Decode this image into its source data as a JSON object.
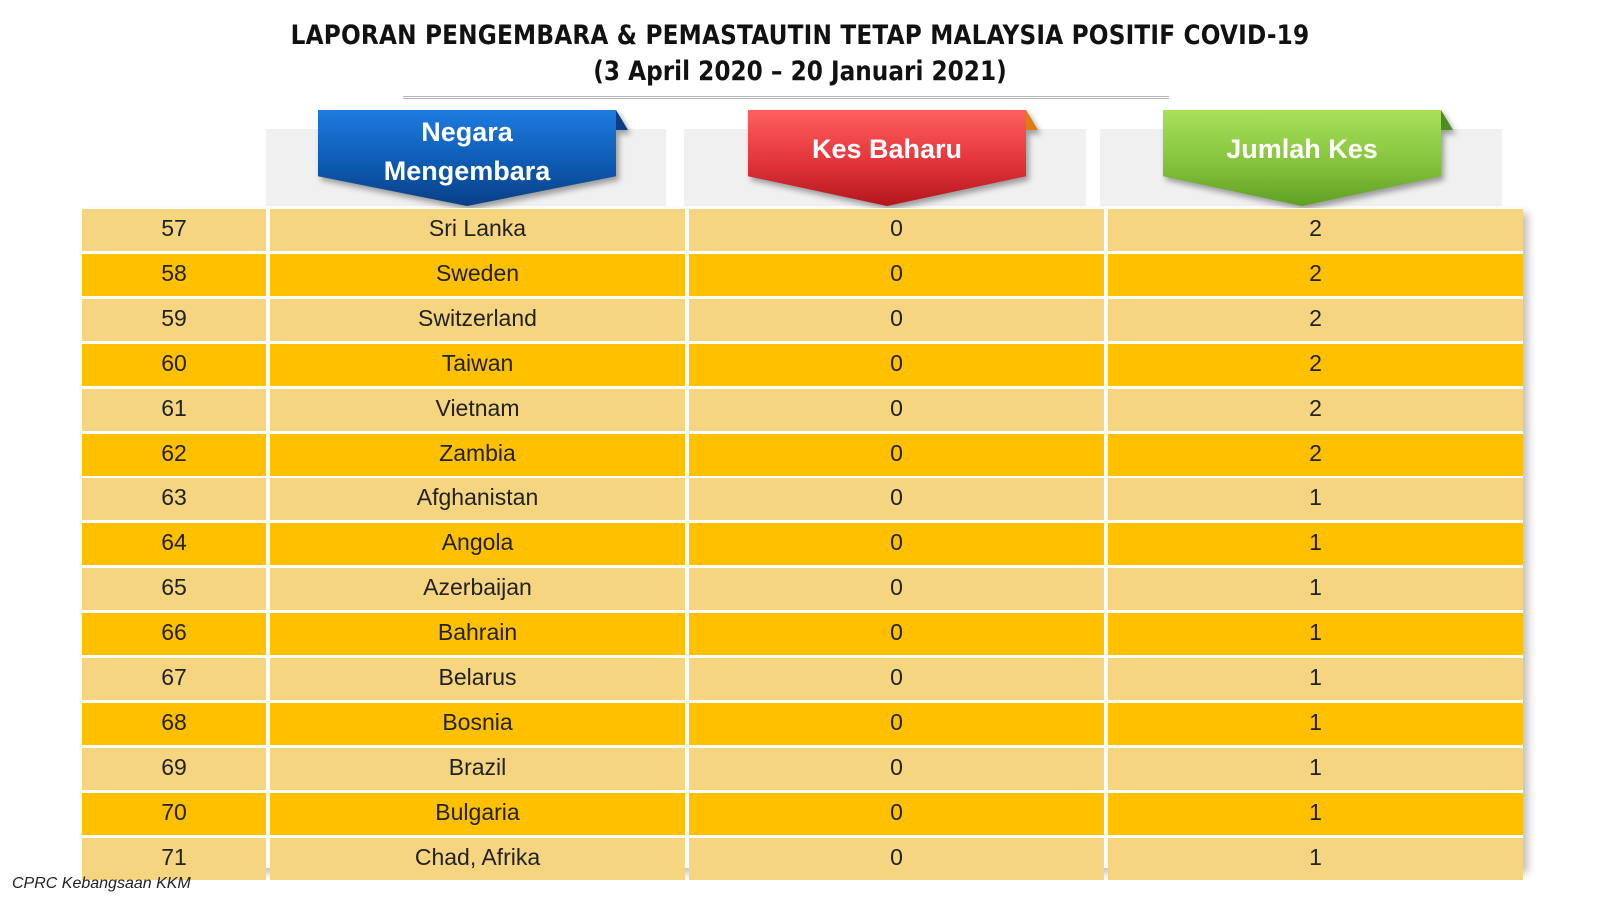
{
  "title": {
    "line1": "LAPORAN PENGEMBARA & PEMASTAUTIN TETAP MALAYSIA POSITIF COVID-19",
    "line2": "(3 April 2020 –  20 Januari 2021)"
  },
  "headers": {
    "country_line1": "Negara",
    "country_line2": "Mengembara",
    "new_cases": "Kes Baharu",
    "total_cases": "Jumlah Kes"
  },
  "colors": {
    "row_light": "#f5d580",
    "row_dark": "#ffc000",
    "header_blue": "#0d5bb3",
    "header_red": "#e2343a",
    "header_green": "#86c33d"
  },
  "rows": [
    {
      "no": "57",
      "country": "Sri Lanka",
      "new": "0",
      "total": "2"
    },
    {
      "no": "58",
      "country": "Sweden",
      "new": "0",
      "total": "2"
    },
    {
      "no": "59",
      "country": "Switzerland",
      "new": "0",
      "total": "2"
    },
    {
      "no": "60",
      "country": "Taiwan",
      "new": "0",
      "total": "2"
    },
    {
      "no": "61",
      "country": "Vietnam",
      "new": "0",
      "total": "2"
    },
    {
      "no": "62",
      "country": "Zambia",
      "new": "0",
      "total": "2"
    },
    {
      "no": "63",
      "country": "Afghanistan",
      "new": "0",
      "total": "1"
    },
    {
      "no": "64",
      "country": "Angola",
      "new": "0",
      "total": "1"
    },
    {
      "no": "65",
      "country": "Azerbaijan",
      "new": "0",
      "total": "1"
    },
    {
      "no": "66",
      "country": "Bahrain",
      "new": "0",
      "total": "1"
    },
    {
      "no": "67",
      "country": "Belarus",
      "new": "0",
      "total": "1"
    },
    {
      "no": "68",
      "country": "Bosnia",
      "new": "0",
      "total": "1"
    },
    {
      "no": "69",
      "country": "Brazil",
      "new": "0",
      "total": "1"
    },
    {
      "no": "70",
      "country": "Bulgaria",
      "new": "0",
      "total": "1"
    },
    {
      "no": "71",
      "country": "Chad, Afrika",
      "new": "0",
      "total": "1"
    }
  ],
  "footer": "CPRC Kebangsaan KKM"
}
